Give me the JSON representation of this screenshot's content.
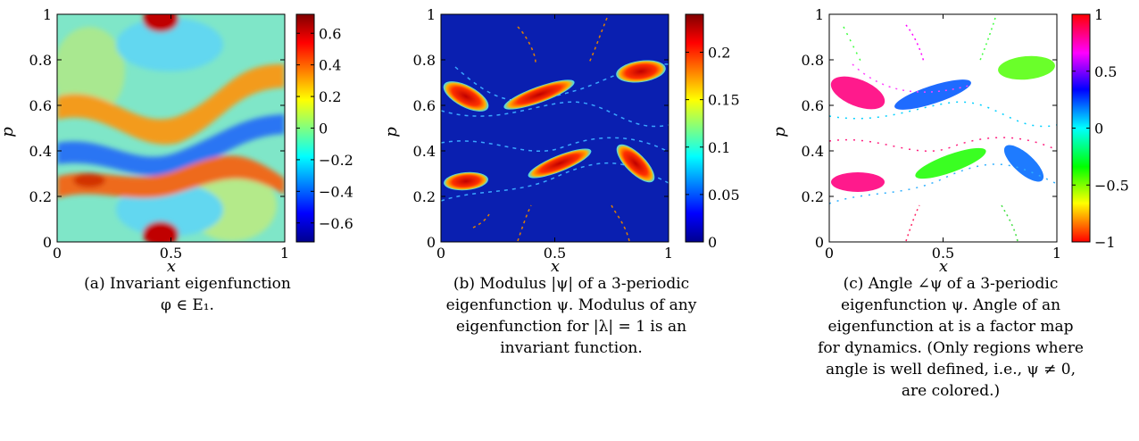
{
  "panels": [
    {
      "id": "a",
      "xlabel": "x",
      "ylabel": "p",
      "x_ticks": [
        "0",
        "0.5",
        "1"
      ],
      "y_ticks": [
        "0",
        "0.2",
        "0.4",
        "0.6",
        "0.8",
        "1"
      ],
      "colorbar_ticks": [
        "0.6",
        "0.4",
        "0.2",
        "0",
        "−0.2",
        "−0.4",
        "−0.6"
      ],
      "colorbar_values": [
        0.6,
        0.4,
        0.2,
        0,
        -0.2,
        -0.4,
        -0.6
      ],
      "colorbar_range": [
        -0.72,
        0.72
      ],
      "colormap": "jet",
      "caption_lines": [
        "(a) Invariant eigenfunction",
        "φ ∈ E₁."
      ]
    },
    {
      "id": "b",
      "xlabel": "x",
      "ylabel": "p",
      "x_ticks": [
        "0",
        "0.5",
        "1"
      ],
      "y_ticks": [
        "0",
        "0.2",
        "0.4",
        "0.6",
        "0.8",
        "1"
      ],
      "colorbar_ticks": [
        "0.2",
        "0.15",
        "0.1",
        "0.05",
        "0"
      ],
      "colorbar_values": [
        0.2,
        0.15,
        0.1,
        0.05,
        0
      ],
      "colorbar_range": [
        0,
        0.24
      ],
      "colormap": "jet",
      "caption_lines": [
        "(b) Modulus |ψ| of a 3-periodic",
        "eigenfunction ψ. Modulus of any",
        "eigenfunction for |λ| = 1 is an",
        "invariant function."
      ]
    },
    {
      "id": "c",
      "xlabel": "x",
      "ylabel": "p",
      "x_ticks": [
        "0",
        "0.5",
        "1"
      ],
      "y_ticks": [
        "0",
        "0.2",
        "0.4",
        "0.6",
        "0.8",
        "1"
      ],
      "colorbar_ticks": [
        "1",
        "0.5",
        "0",
        "−0.5",
        "−1"
      ],
      "colorbar_values": [
        1,
        0.5,
        0,
        -0.5,
        -1
      ],
      "colorbar_range": [
        -1,
        1
      ],
      "colormap": "hsv",
      "caption_lines": [
        "(c) Angle ∠ψ of a 3-periodic",
        "eigenfunction ψ. Angle of an",
        "eigenfunction at is a factor map",
        "for dynamics. (Only regions where",
        "angle is well defined, i.e., ψ ≠ 0,",
        "are colored.)"
      ]
    }
  ],
  "colors": {
    "jet_background_b": "#0a1fb0",
    "background_c": "#ffffff"
  }
}
